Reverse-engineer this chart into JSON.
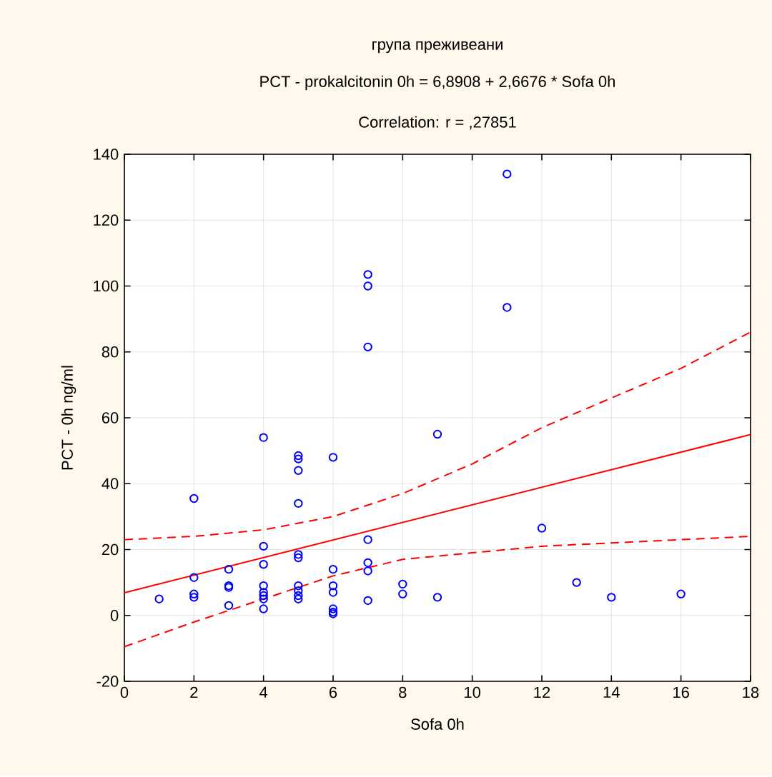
{
  "chart_data": {
    "type": "scatter",
    "title": "група преживеани",
    "subtitle": "PCT - prokalcitonin 0h = 6,8908 + 2,6676 * Sofa  0h",
    "annotations": [
      "Correlation: r = ,27851"
    ],
    "xlabel": "Sofa  0h",
    "ylabel": "PCT - 0h ng/ml",
    "xlim": [
      0,
      18
    ],
    "ylim": [
      -20,
      140
    ],
    "xticks": [
      0,
      2,
      4,
      6,
      8,
      10,
      12,
      14,
      16,
      18
    ],
    "yticks": [
      -20,
      0,
      20,
      40,
      60,
      80,
      100,
      120,
      140
    ],
    "grid": true,
    "series": [
      {
        "marker": "circle",
        "color": "#0000ff",
        "x": [
          1,
          2,
          2,
          2,
          2,
          3,
          3,
          3,
          3,
          4,
          4,
          4,
          4,
          4,
          4,
          4,
          4,
          5,
          5,
          5,
          5,
          5,
          5,
          5,
          5,
          5,
          5,
          6,
          6,
          6,
          6,
          6,
          6,
          6,
          7,
          7,
          7,
          7,
          7,
          7,
          7,
          8,
          8,
          9,
          9,
          11,
          11,
          12,
          13,
          14,
          16
        ],
        "values": [
          5,
          35.5,
          11.5,
          6.5,
          5.5,
          14,
          9,
          8.5,
          3,
          54,
          21,
          15.5,
          9,
          7,
          6,
          5,
          2,
          48.5,
          47.5,
          44,
          34,
          18.5,
          17.5,
          9,
          7.5,
          6,
          5,
          48,
          14,
          9,
          7,
          2,
          1,
          0.5,
          103.5,
          100,
          81.5,
          23,
          16,
          13.5,
          4.5,
          9.5,
          6.5,
          55,
          5.5,
          134,
          93.5,
          26.5,
          10,
          5.5,
          6.5
        ]
      },
      {
        "type": "line",
        "marker": "none",
        "line_style": "solid",
        "color": "#ff0000",
        "x": [
          0,
          18
        ],
        "values": [
          6.9,
          54.9
        ]
      },
      {
        "type": "line",
        "marker": "none",
        "line_style": "dashed",
        "color": "#ff0000",
        "x": [
          0,
          2,
          4,
          6,
          8,
          10,
          12,
          14,
          16,
          18
        ],
        "values": [
          23,
          24,
          26,
          30,
          37,
          46,
          57,
          66,
          75,
          86
        ]
      },
      {
        "type": "line",
        "marker": "none",
        "line_style": "dashed",
        "color": "#ff0000",
        "x": [
          0,
          2,
          4,
          6,
          8,
          10,
          12,
          14,
          16,
          18
        ],
        "values": [
          -9.5,
          -2,
          5,
          12,
          17,
          19,
          21,
          22,
          23,
          24
        ]
      }
    ]
  }
}
